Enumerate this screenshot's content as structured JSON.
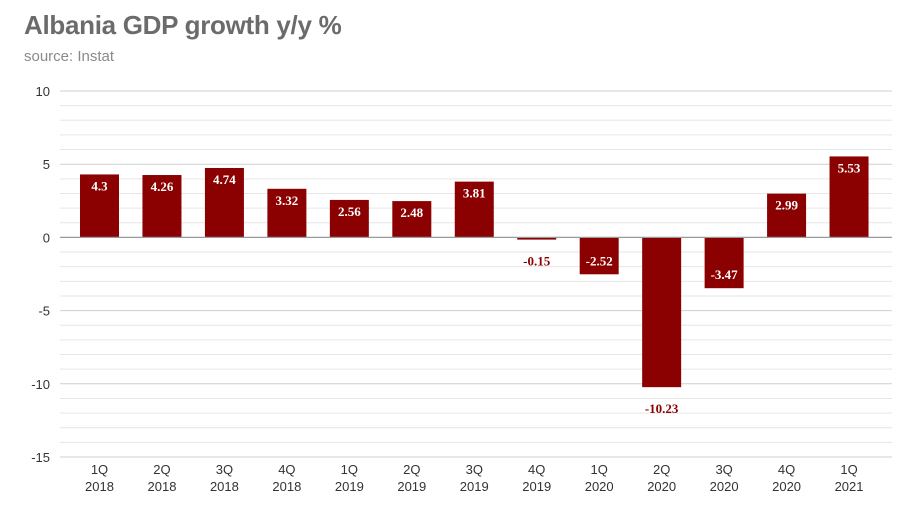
{
  "chart_data": {
    "type": "bar",
    "title": "Albania GDP growth y/y %",
    "subtitle": "source: Instat",
    "xlabel": "",
    "ylabel": "",
    "categories": [
      "1Q 2018",
      "2Q 2018",
      "3Q 2018",
      "4Q 2018",
      "1Q 2019",
      "2Q 2019",
      "3Q 2019",
      "4Q 2019",
      "1Q 2020",
      "2Q 2020",
      "3Q 2020",
      "4Q 2020",
      "1Q 2021"
    ],
    "category_lines": [
      [
        "1Q",
        "2018"
      ],
      [
        "2Q",
        "2018"
      ],
      [
        "3Q",
        "2018"
      ],
      [
        "4Q",
        "2018"
      ],
      [
        "1Q",
        "2019"
      ],
      [
        "2Q",
        "2019"
      ],
      [
        "3Q",
        "2019"
      ],
      [
        "4Q",
        "2019"
      ],
      [
        "1Q",
        "2020"
      ],
      [
        "2Q",
        "2020"
      ],
      [
        "3Q",
        "2020"
      ],
      [
        "4Q",
        "2020"
      ],
      [
        "1Q",
        "2021"
      ]
    ],
    "values": [
      4.3,
      4.26,
      4.74,
      3.32,
      2.56,
      2.48,
      3.81,
      -0.15,
      -2.52,
      -10.23,
      -3.47,
      2.99,
      5.53
    ],
    "data_labels": [
      "4.3",
      "4.26",
      "4.74",
      "3.32",
      "2.56",
      "2.48",
      "3.81",
      "-0.15",
      "-2.52",
      "-10.23",
      "-3.47",
      "2.99",
      "5.53"
    ],
    "ylim": [
      -15,
      10
    ],
    "yticks": [
      10,
      5,
      0,
      -5,
      -10,
      -15
    ],
    "grid": true,
    "bar_color": "#8b0000",
    "negative_label_color": "#8b0000",
    "positive_label_color": "#ffffff",
    "legend": "none"
  }
}
